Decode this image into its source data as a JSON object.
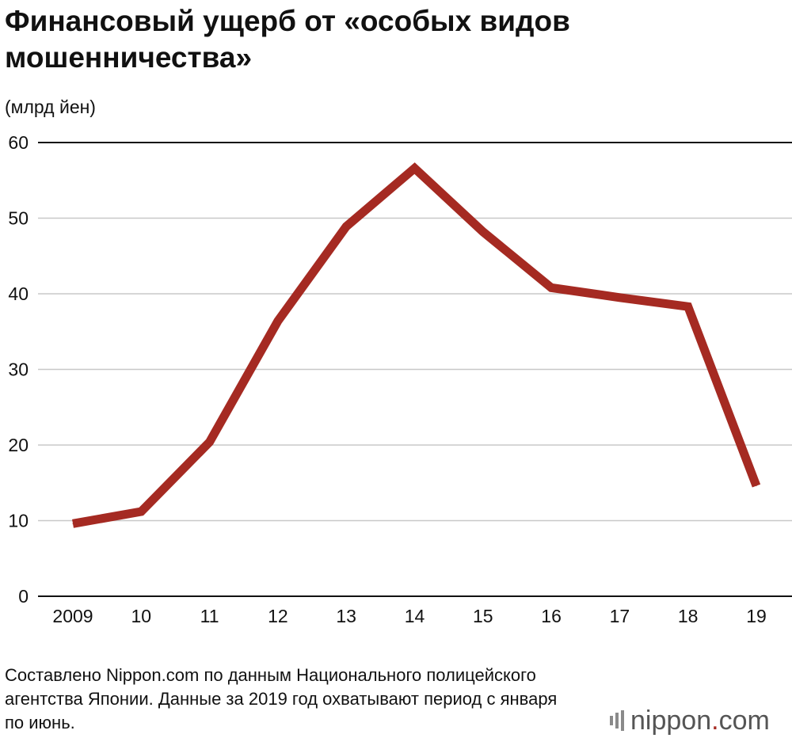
{
  "colors": {
    "line": "#a52a22",
    "grid": "#c8c8c8",
    "axis": "#111111",
    "logo_accent": "#a52a22"
  },
  "chart_data": {
    "type": "line",
    "title": "Финансовый ущерб от «особых видов мошенничества»",
    "ylabel": "(млрд йен)",
    "xlabel": "",
    "categories": [
      "2009",
      "10",
      "11",
      "12",
      "13",
      "14",
      "15",
      "16",
      "17",
      "18",
      "19"
    ],
    "values": [
      9.6,
      11.2,
      20.4,
      36.4,
      48.9,
      56.6,
      48.2,
      40.8,
      39.5,
      38.3,
      14.6
    ],
    "ylim": [
      0,
      60
    ],
    "yticks": [
      0,
      10,
      20,
      30,
      40,
      50,
      60
    ],
    "grid": true,
    "legend": "none"
  },
  "footer": {
    "source_note": "Составлено Nippon.com по данным Национального полицейского агентства Японии. Данные за 2019 год охватывают период с января по июнь.",
    "logo_name": "nippon",
    "logo_dot": ".",
    "logo_suffix": "com"
  }
}
